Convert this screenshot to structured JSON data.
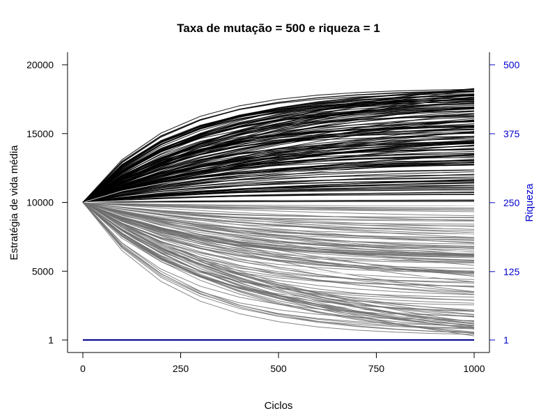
{
  "chart_data": {
    "type": "line",
    "title": "Taxa de mutação = 500 e riqueza = 1",
    "xlabel": "Ciclos",
    "ylabel": "Estratégia de vida média",
    "y2label": "Riqueza",
    "xlim": [
      0,
      1000
    ],
    "ylim": [
      1,
      20000
    ],
    "y2lim": [
      1,
      500
    ],
    "x_ticks": [
      0,
      250,
      500,
      750,
      1000
    ],
    "y_ticks": [
      1,
      5000,
      10000,
      15000,
      20000
    ],
    "y2_ticks": [
      1,
      125,
      250,
      375,
      500
    ],
    "x_tick_labels": [
      "0",
      "250",
      "500",
      "750",
      "1000"
    ],
    "y_tick_labels": [
      "1",
      "5000",
      "10000",
      "15000",
      "20000"
    ],
    "y2_tick_labels": [
      "1",
      "125",
      "250",
      "375",
      "500"
    ],
    "x": [
      0,
      100,
      200,
      300,
      400,
      500,
      600,
      700,
      800,
      900,
      1000
    ],
    "strategy_lines": {
      "count": 300,
      "start": 10000,
      "upper_bound": 18300,
      "lower_bound": 300,
      "colors": [
        "#000000",
        "#6e6e6e",
        "#ffffff"
      ]
    },
    "series": [
      {
        "name": "Riqueza",
        "axis": "right",
        "values": [
          1,
          1,
          1,
          1,
          1,
          1,
          1,
          1,
          1,
          1,
          1
        ],
        "color": "#00008b"
      }
    ],
    "grid": false,
    "legend": "none",
    "right_axis_color": "#0000cd"
  }
}
